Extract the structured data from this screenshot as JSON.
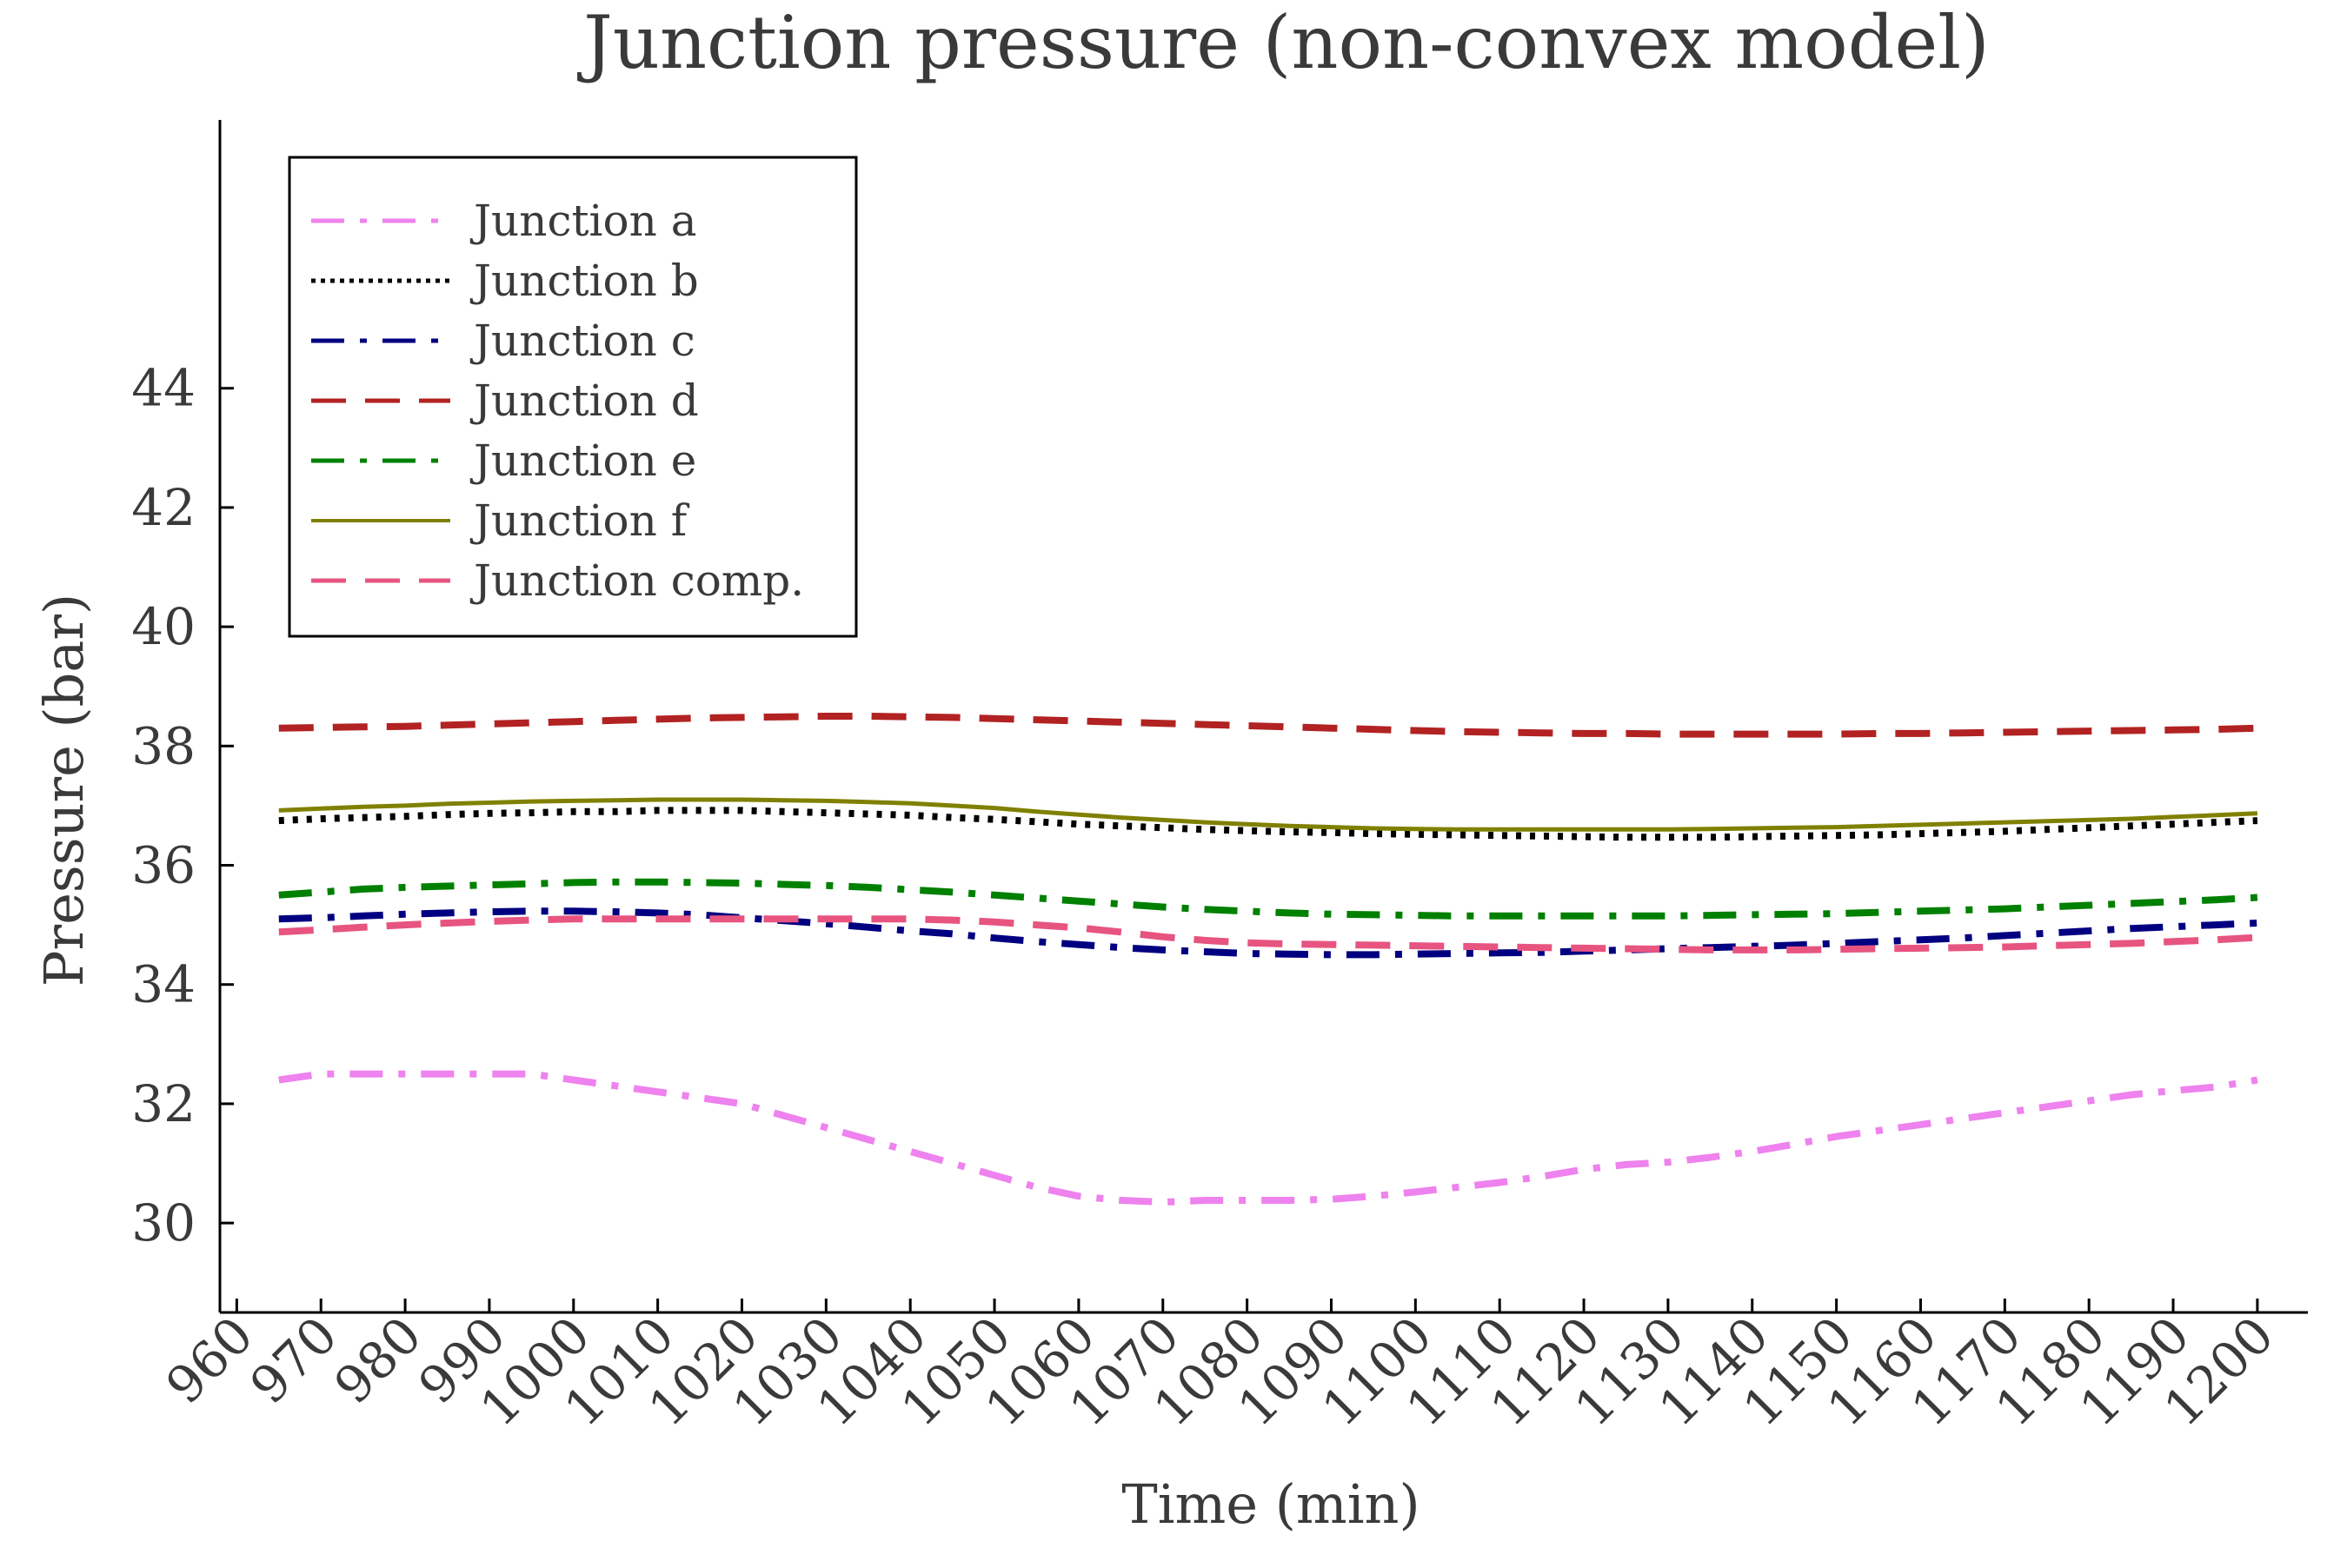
{
  "chart_data": {
    "type": "line",
    "title": "Junction pressure (non-convex model)",
    "xlabel": "Time (min)",
    "ylabel": "Pressure (bar)",
    "xlim": [
      958,
      1206
    ],
    "ylim": [
      28.5,
      48.5
    ],
    "x_ticks": [
      "960",
      "970",
      "980",
      "990",
      "1000",
      "1010",
      "1020",
      "1030",
      "1040",
      "1050",
      "1060",
      "1070",
      "1080",
      "1090",
      "1100",
      "1110",
      "1120",
      "1130",
      "1140",
      "1150",
      "1160",
      "1170",
      "1180",
      "1190",
      "1200"
    ],
    "y_ticks": [
      "30",
      "32",
      "34",
      "36",
      "38",
      "40",
      "42",
      "44"
    ],
    "legend_position": "top-left",
    "x": [
      965,
      970,
      975,
      980,
      985,
      990,
      995,
      1000,
      1005,
      1010,
      1015,
      1020,
      1025,
      1030,
      1035,
      1040,
      1045,
      1050,
      1055,
      1060,
      1065,
      1070,
      1075,
      1080,
      1085,
      1090,
      1095,
      1100,
      1105,
      1110,
      1115,
      1120,
      1125,
      1130,
      1135,
      1140,
      1145,
      1150,
      1155,
      1160,
      1165,
      1170,
      1175,
      1180,
      1185,
      1190,
      1195,
      1200
    ],
    "series": [
      {
        "name": "Junction a",
        "color": "#ee82ee",
        "dash": "dashdot",
        "values": [
          32.4,
          32.5,
          32.5,
          32.5,
          32.5,
          32.5,
          32.5,
          32.4,
          32.3,
          32.2,
          32.1,
          32.0,
          31.8,
          31.6,
          31.4,
          31.2,
          31.0,
          30.8,
          30.6,
          30.45,
          30.38,
          30.35,
          30.38,
          30.38,
          30.38,
          30.4,
          30.45,
          30.52,
          30.6,
          30.68,
          30.78,
          30.9,
          30.98,
          31.02,
          31.1,
          31.2,
          31.32,
          31.45,
          31.55,
          31.65,
          31.75,
          31.85,
          31.95,
          32.05,
          32.15,
          32.22,
          32.28,
          32.4
        ]
      },
      {
        "name": "Junction b",
        "color": "#000000",
        "dash": "dotted",
        "values": [
          36.75,
          36.78,
          36.8,
          36.82,
          36.85,
          36.87,
          36.88,
          36.9,
          36.9,
          36.92,
          36.92,
          36.92,
          36.9,
          36.88,
          36.86,
          36.84,
          36.8,
          36.77,
          36.73,
          36.69,
          36.66,
          36.63,
          36.6,
          36.58,
          36.56,
          36.55,
          36.53,
          36.52,
          36.51,
          36.5,
          36.49,
          36.48,
          36.47,
          36.47,
          36.47,
          36.48,
          36.49,
          36.5,
          36.51,
          36.53,
          36.55,
          36.57,
          36.6,
          36.63,
          36.66,
          36.69,
          36.72,
          36.75
        ]
      },
      {
        "name": "Junction c",
        "color": "#000080",
        "dash": "dashdot",
        "values": [
          35.1,
          35.12,
          35.15,
          35.18,
          35.2,
          35.22,
          35.23,
          35.23,
          35.22,
          35.2,
          35.17,
          35.12,
          35.07,
          35.02,
          34.96,
          34.9,
          34.85,
          34.78,
          34.72,
          34.67,
          34.62,
          34.58,
          34.55,
          34.52,
          34.51,
          34.5,
          34.5,
          34.51,
          34.52,
          34.53,
          34.54,
          34.56,
          34.58,
          34.6,
          34.62,
          34.64,
          34.66,
          34.69,
          34.72,
          34.75,
          34.78,
          34.82,
          34.86,
          34.9,
          34.94,
          34.97,
          35.0,
          35.03
        ]
      },
      {
        "name": "Junction d",
        "color": "#b22222",
        "dash": "dashed",
        "values": [
          38.3,
          38.31,
          38.32,
          38.33,
          38.35,
          38.37,
          38.39,
          38.41,
          38.43,
          38.45,
          38.47,
          38.48,
          38.49,
          38.5,
          38.5,
          38.49,
          38.48,
          38.46,
          38.44,
          38.42,
          38.4,
          38.38,
          38.36,
          38.34,
          38.32,
          38.3,
          38.28,
          38.26,
          38.24,
          38.23,
          38.22,
          38.21,
          38.21,
          38.2,
          38.2,
          38.2,
          38.2,
          38.2,
          38.21,
          38.21,
          38.22,
          38.23,
          38.24,
          38.25,
          38.26,
          38.27,
          38.28,
          38.3
        ]
      },
      {
        "name": "Junction e",
        "color": "#008000",
        "dash": "dashdot",
        "values": [
          35.5,
          35.55,
          35.6,
          35.63,
          35.65,
          35.67,
          35.69,
          35.71,
          35.72,
          35.72,
          35.71,
          35.7,
          35.68,
          35.66,
          35.63,
          35.59,
          35.55,
          35.5,
          35.45,
          35.4,
          35.35,
          35.3,
          35.26,
          35.23,
          35.2,
          35.18,
          35.17,
          35.16,
          35.15,
          35.15,
          35.15,
          35.15,
          35.15,
          35.15,
          35.16,
          35.17,
          35.18,
          35.19,
          35.21,
          35.23,
          35.25,
          35.27,
          35.3,
          35.33,
          35.36,
          35.39,
          35.42,
          35.46
        ]
      },
      {
        "name": "Junction f",
        "color": "#808000",
        "dash": "solid",
        "values": [
          36.92,
          36.95,
          36.98,
          37.0,
          37.03,
          37.05,
          37.07,
          37.08,
          37.09,
          37.1,
          37.1,
          37.1,
          37.09,
          37.08,
          37.06,
          37.04,
          37.0,
          36.96,
          36.9,
          36.85,
          36.8,
          36.76,
          36.72,
          36.69,
          36.66,
          36.64,
          36.62,
          36.61,
          36.6,
          36.6,
          36.6,
          36.6,
          36.6,
          36.6,
          36.61,
          36.62,
          36.63,
          36.64,
          36.66,
          36.68,
          36.7,
          36.72,
          36.74,
          36.76,
          36.78,
          36.81,
          36.84,
          36.87
        ]
      },
      {
        "name": "Junction comp.",
        "color": "#e75480",
        "dash": "dashed",
        "values": [
          34.88,
          34.92,
          34.96,
          35.0,
          35.03,
          35.06,
          35.08,
          35.1,
          35.1,
          35.1,
          35.1,
          35.1,
          35.1,
          35.1,
          35.1,
          35.1,
          35.08,
          35.05,
          35.0,
          34.95,
          34.88,
          34.8,
          34.74,
          34.7,
          34.68,
          34.67,
          34.66,
          34.65,
          34.64,
          34.63,
          34.62,
          34.61,
          34.6,
          34.59,
          34.58,
          34.58,
          34.58,
          34.59,
          34.6,
          34.61,
          34.62,
          34.63,
          34.65,
          34.67,
          34.69,
          34.72,
          34.75,
          34.79
        ]
      }
    ]
  }
}
